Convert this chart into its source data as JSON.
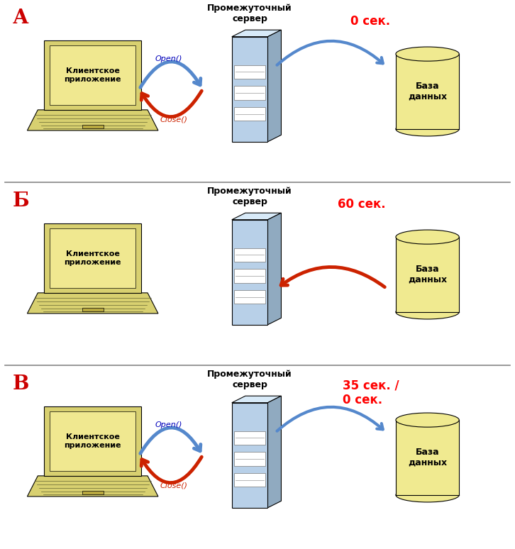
{
  "panels": [
    "А",
    "Б",
    "В"
  ],
  "panel_colors": [
    "#cc0000",
    "#cc0000",
    "#cc0000"
  ],
  "server_label": "Промежуточный\nсервер",
  "db_label": "База\nданных",
  "client_label": "Клиентское\nприложение",
  "open_label": "Open()",
  "close_label": "Close()",
  "time_labels": [
    "0 сек.",
    "60 сек.",
    "35 сек. /\n0 сек."
  ],
  "bg_color": "#ffffff",
  "separator_color": "#888888",
  "computer_body_color": "#d8d070",
  "computer_screen_color": "#f0e890",
  "server_front_color": "#b8d0e8",
  "server_top_color": "#d8eaf8",
  "server_side_color": "#90aac0",
  "db_color": "#f0ea90",
  "db_rim_color": "#c8b840",
  "arrow_blue": "#5588cc",
  "arrow_red": "#cc2200",
  "open_text_color": "#0000bb",
  "close_text_color": "#cc2200",
  "label_fontsize": 20,
  "server_label_fontsize": 9,
  "time_fontsize": 12,
  "client_fontsize": 8,
  "db_fontsize": 9,
  "call_fontsize": 8
}
